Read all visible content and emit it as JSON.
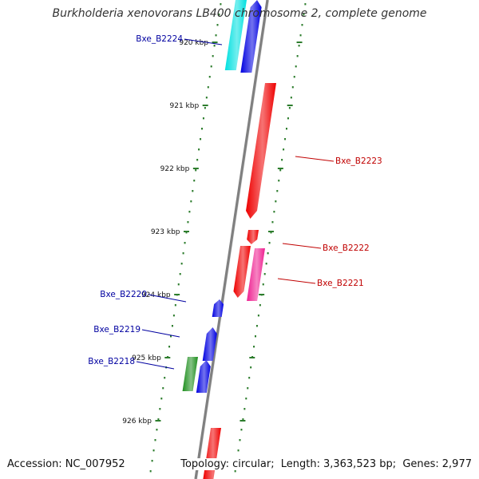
{
  "title": "Burkholderia xenovorans LB400 chromosome 2, complete genome",
  "footer": {
    "accession_label": "Accession:",
    "accession": "NC_007952",
    "topology_label": "Topology:",
    "topology": "circular",
    "length_label": "Length:",
    "length": "3,363,523 bp",
    "genes_label": "Genes:",
    "genes": "2,977"
  },
  "colors": {
    "backbone": "#808080",
    "tick": "#2d7d2d",
    "label_blue": "#0000a0",
    "label_red": "#c00000"
  },
  "ticks": [
    {
      "label": "920 kbp",
      "pos_kbp": 920
    },
    {
      "label": "921 kbp",
      "pos_kbp": 921
    },
    {
      "label": "922 kbp",
      "pos_kbp": 922
    },
    {
      "label": "923 kbp",
      "pos_kbp": 923
    },
    {
      "label": "924 kbp",
      "pos_kbp": 924
    },
    {
      "label": "925 kbp",
      "pos_kbp": 925
    },
    {
      "label": "926 kbp",
      "pos_kbp": 926
    }
  ],
  "gene_labels": [
    {
      "name": "Bxe_B2224",
      "strand": "reverse"
    },
    {
      "name": "Bxe_B2223",
      "strand": "forward"
    },
    {
      "name": "Bxe_B2222",
      "strand": "forward"
    },
    {
      "name": "Bxe_B2221",
      "strand": "forward"
    },
    {
      "name": "Bxe_B2220",
      "strand": "reverse"
    },
    {
      "name": "Bxe_B2219",
      "strand": "reverse"
    },
    {
      "name": "Bxe_B2218",
      "strand": "reverse"
    }
  ],
  "features": [
    {
      "gene": "Bxe_B2224",
      "track": "outer-reverse",
      "color": "#00e0e0",
      "dir": "up"
    },
    {
      "gene": "",
      "track": "inner-reverse",
      "color": "#0000e0",
      "dir": "up"
    },
    {
      "gene": "Bxe_B2223",
      "track": "inner-forward",
      "color": "#ee0000",
      "dir": "down"
    },
    {
      "gene": "Bxe_B2222",
      "track": "inner-forward",
      "color": "#ee0000",
      "dir": "down"
    },
    {
      "gene": "",
      "track": "inner-forward",
      "color": "#ee0000",
      "dir": "down"
    },
    {
      "gene": "Bxe_B2221",
      "track": "outer-forward",
      "color": "#ee2090",
      "dir": "down"
    },
    {
      "gene": "Bxe_B2220",
      "track": "inner-reverse",
      "color": "#0000e0",
      "dir": "up"
    },
    {
      "gene": "Bxe_B2219",
      "track": "inner-reverse",
      "color": "#0000e0",
      "dir": "up"
    },
    {
      "gene": "",
      "track": "inner-reverse",
      "color": "#0000e0",
      "dir": "up"
    },
    {
      "gene": "Bxe_B2218",
      "track": "outer-reverse",
      "color": "#1f8f1f",
      "dir": "up"
    },
    {
      "gene": "",
      "track": "inner-forward",
      "color": "#ee0000",
      "dir": "down"
    }
  ]
}
